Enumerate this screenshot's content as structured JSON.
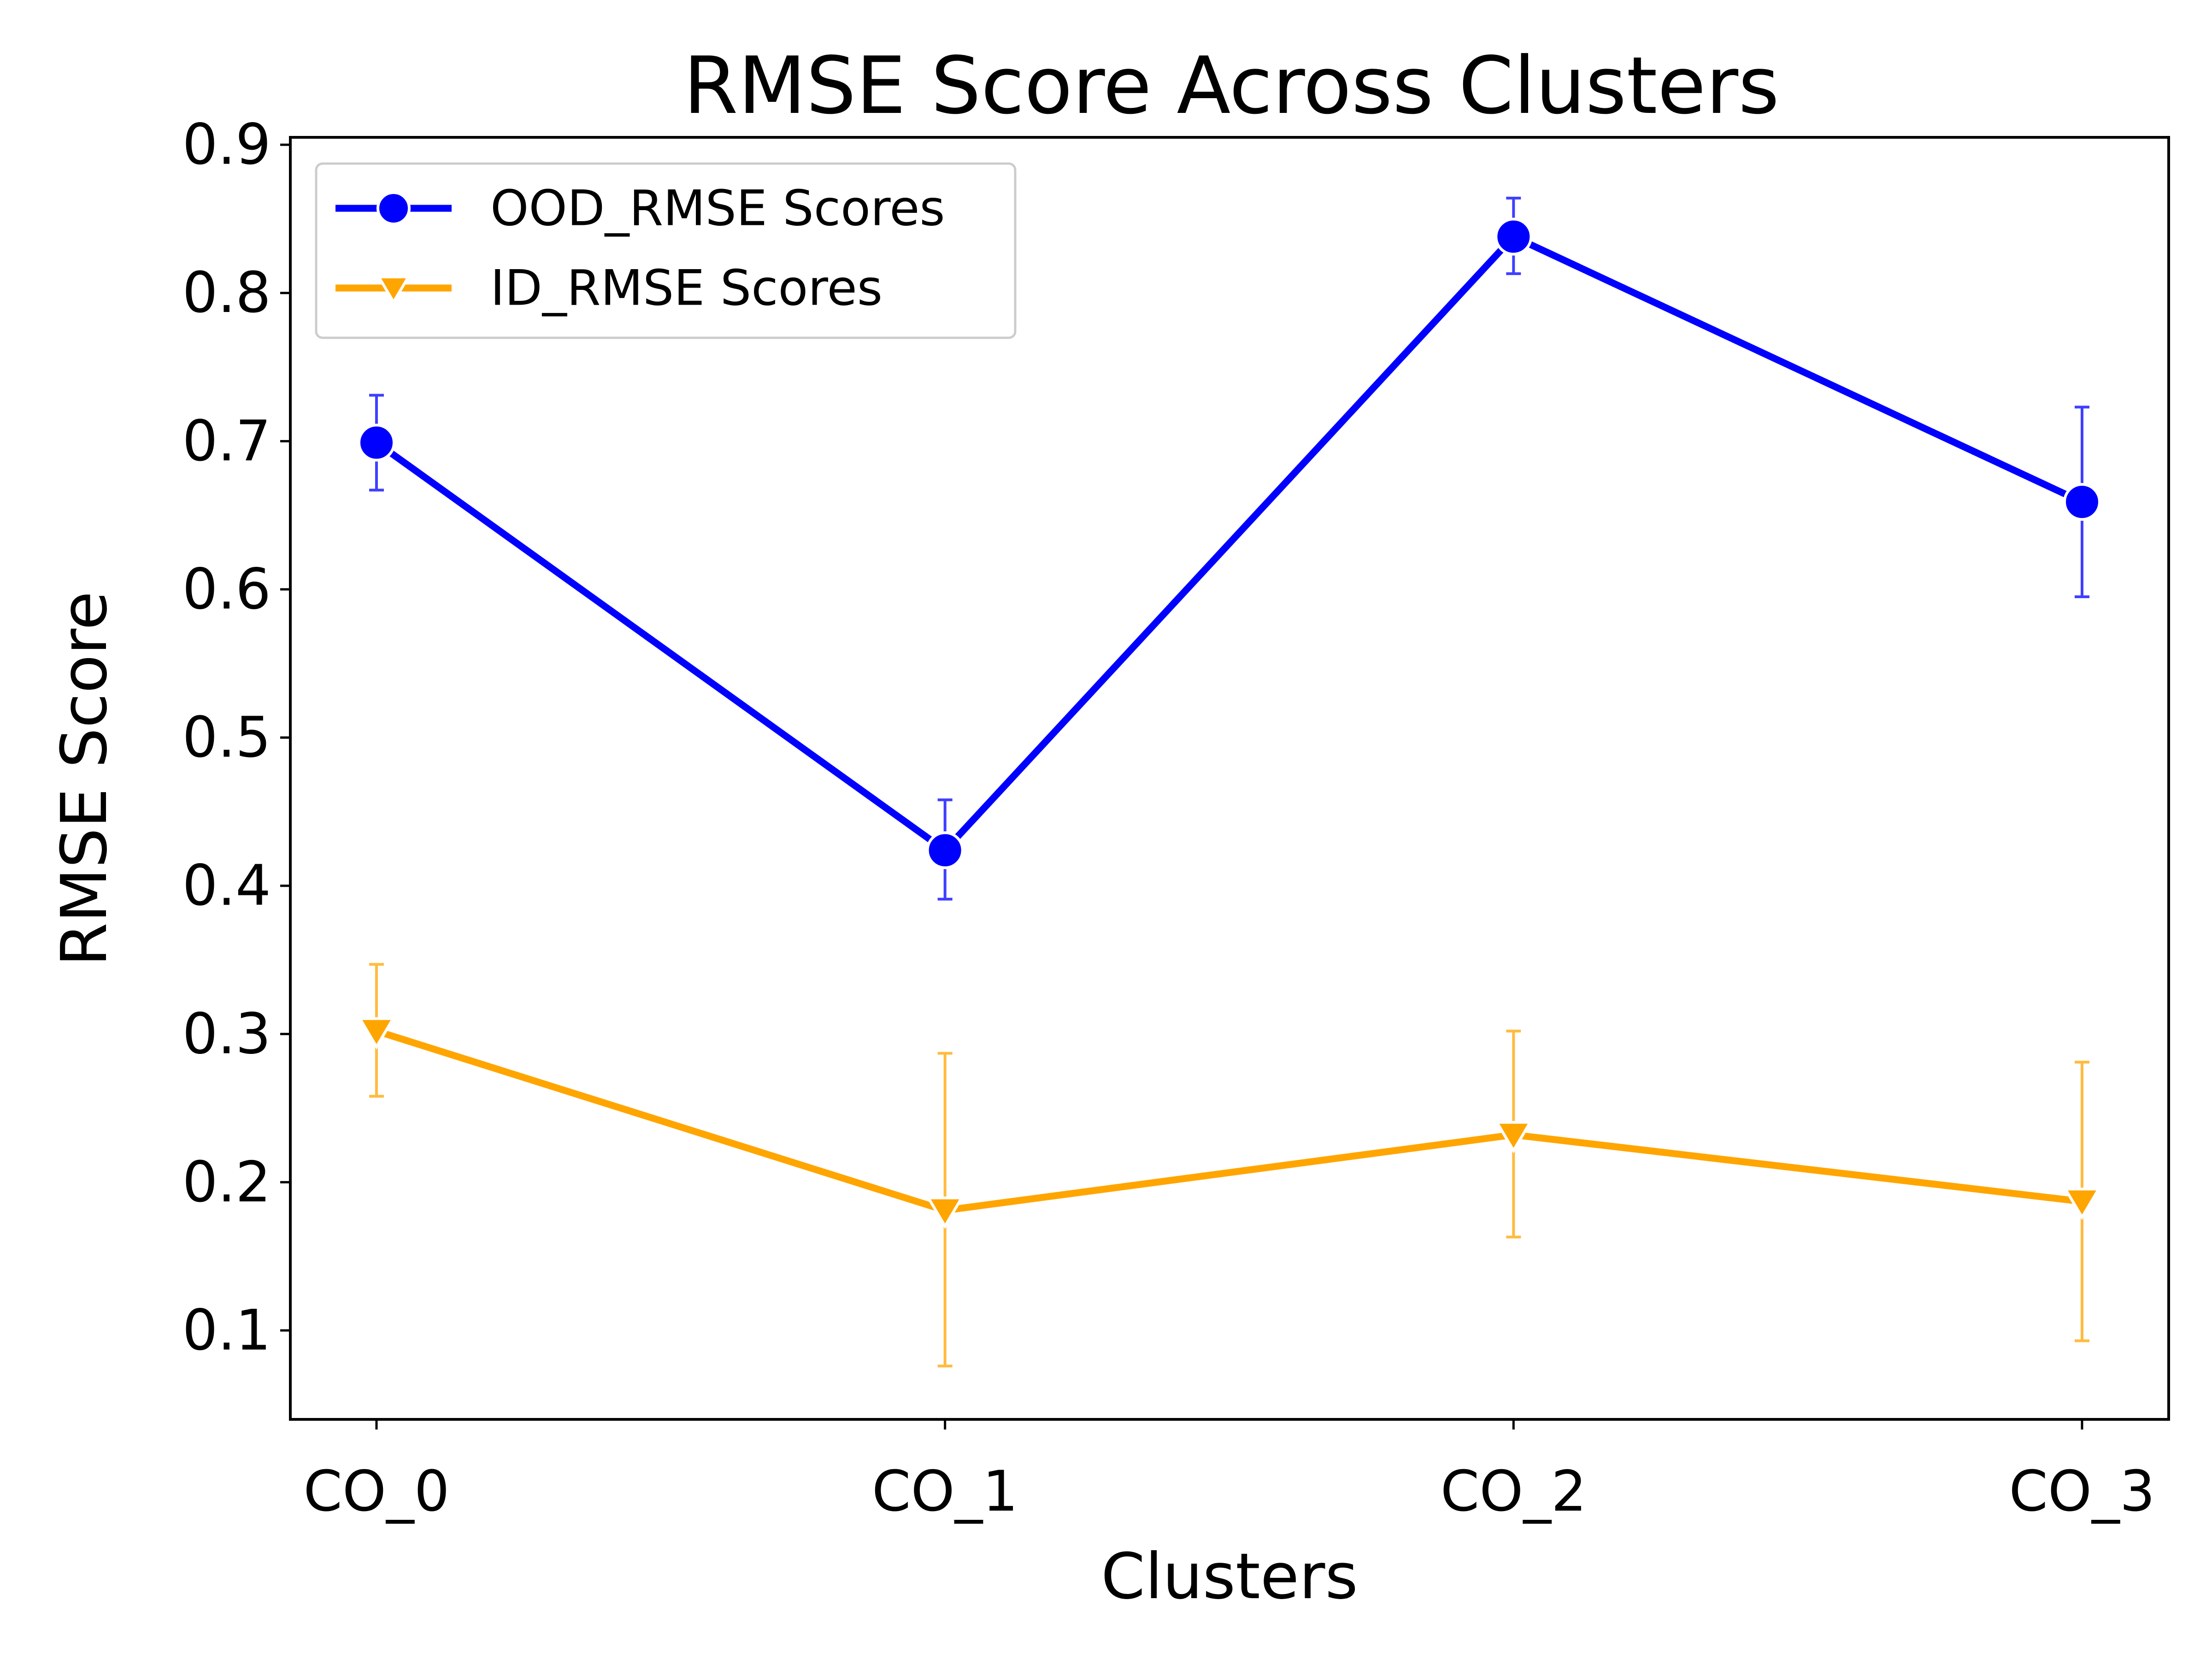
{
  "chart_data": {
    "type": "line",
    "title": "RMSE Score Across Clusters",
    "xlabel": "Clusters",
    "ylabel": "RMSE Score",
    "categories": [
      "CO_0",
      "CO_1",
      "CO_2",
      "CO_3"
    ],
    "ylim": [
      0.04,
      0.905
    ],
    "yticks": [
      0.1,
      0.2,
      0.3,
      0.4,
      0.5,
      0.6,
      0.7,
      0.8,
      0.9
    ],
    "ytick_labels": [
      "0.1",
      "0.2",
      "0.3",
      "0.4",
      "0.5",
      "0.6",
      "0.7",
      "0.8",
      "0.9"
    ],
    "grid": false,
    "legend_position": "top-left",
    "series": [
      {
        "name": "OOD_RMSE Scores",
        "color": "#0000ff",
        "marker": "circle",
        "values": [
          0.699,
          0.424,
          0.838,
          0.659
        ],
        "error_low": [
          0.667,
          0.391,
          0.813,
          0.595
        ],
        "error_high": [
          0.731,
          0.458,
          0.864,
          0.723
        ]
      },
      {
        "name": "ID_RMSE Scores",
        "color": "#ffa500",
        "marker": "triangle-down",
        "values": [
          0.302,
          0.181,
          0.232,
          0.187
        ],
        "error_low": [
          0.258,
          0.076,
          0.163,
          0.093
        ],
        "error_high": [
          0.347,
          0.287,
          0.302,
          0.281
        ]
      }
    ]
  }
}
